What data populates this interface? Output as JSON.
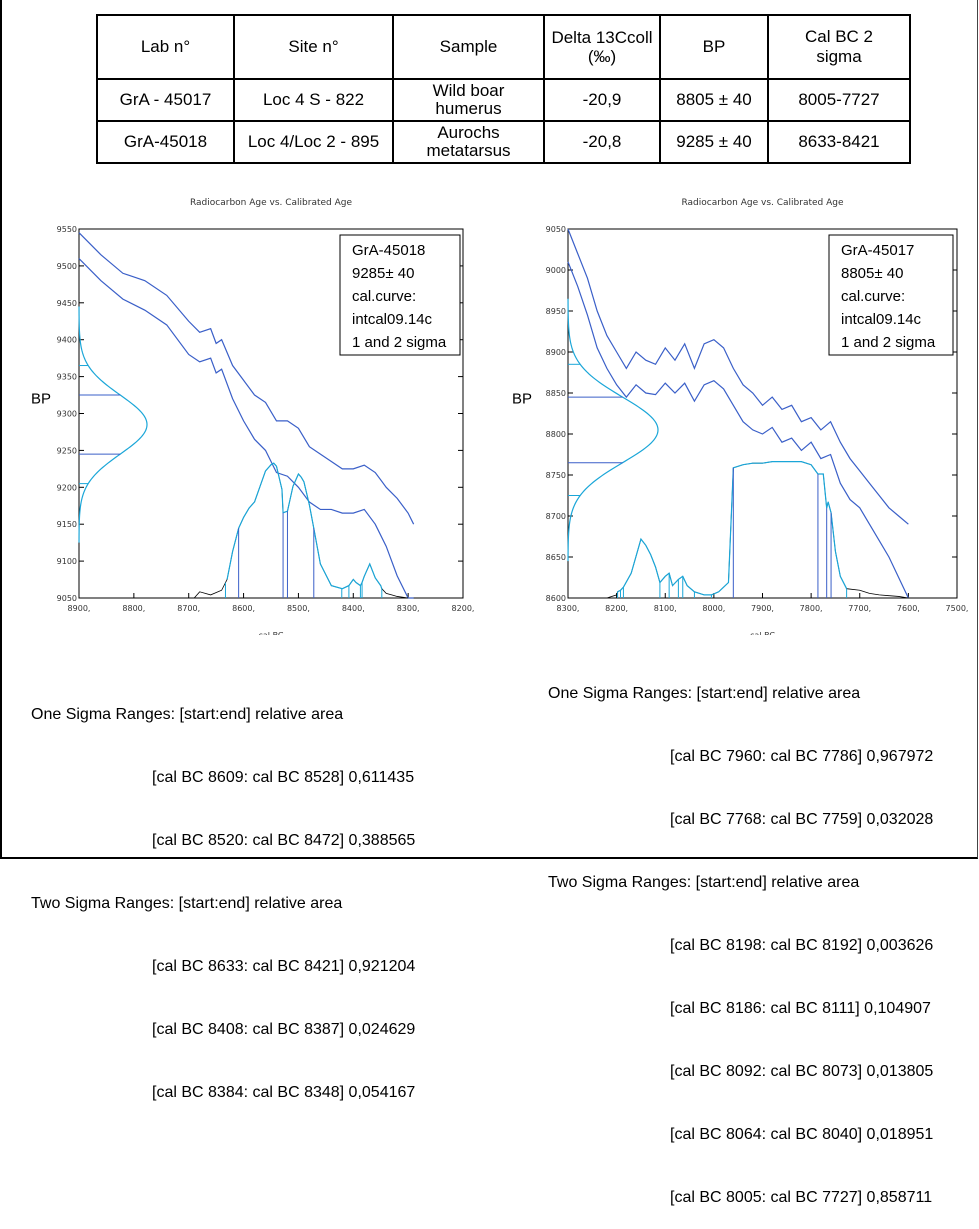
{
  "table": {
    "headers": [
      "Lab n°",
      "Site n°",
      "Sample",
      "Delta 13Ccoll (‰)",
      "BP",
      "Cal BC 2 sigma"
    ],
    "rows": [
      [
        "GrA - 45017",
        "Loc 4 S - 822",
        "Wild boar humerus",
        "-20,9",
        "8805 ± 40",
        "8005-7727"
      ],
      [
        "GrA-45018",
        "Loc 4/Loc 2 - 895",
        "Aurochs metatarsus",
        "-20,8",
        "9285 ± 40",
        "8633-8421"
      ]
    ]
  },
  "chart_data": [
    {
      "type": "line",
      "title": "Radiocarbon Age vs. Calibrated Age",
      "xlabel": "cal BC",
      "ylabel": "BP",
      "xlim": [
        8900,
        8200
      ],
      "ylim": [
        9050,
        9550
      ],
      "x_ticks": [
        "8900,",
        "8800,",
        "8700,",
        "8600,",
        "8500,",
        "8400,",
        "8300,",
        "8200,"
      ],
      "y_ticks": [
        "9550",
        "9500",
        "9450",
        "9400",
        "9350",
        "9300",
        "9250",
        "9200",
        "9150",
        "9100",
        "9050"
      ],
      "legend": [
        "GrA-45018",
        "9285± 40",
        "cal.curve:",
        "intcal09.14c",
        "1 and 2 sigma"
      ],
      "legend_position": "top-right",
      "grid": false,
      "curve_x": [
        8900,
        8860,
        8820,
        8780,
        8740,
        8700,
        8680,
        8660,
        8650,
        8640,
        8620,
        8600,
        8580,
        8560,
        8540,
        8520,
        8500,
        8480,
        8460,
        8440,
        8420,
        8400,
        8380,
        8360,
        8340,
        8320,
        8300,
        8290
      ],
      "curve_upper": [
        9545,
        9515,
        9490,
        9480,
        9460,
        9425,
        9410,
        9415,
        9395,
        9400,
        9365,
        9345,
        9325,
        9315,
        9290,
        9290,
        9280,
        9255,
        9245,
        9235,
        9225,
        9225,
        9230,
        9220,
        9200,
        9185,
        9165,
        9150
      ],
      "curve_lower": [
        9510,
        9480,
        9455,
        9440,
        9420,
        9380,
        9370,
        9375,
        9355,
        9360,
        9320,
        9290,
        9265,
        9250,
        9220,
        9215,
        9200,
        9180,
        9170,
        9170,
        9165,
        9165,
        9170,
        9150,
        9120,
        9080,
        9050,
        9050
      ],
      "measurement_bp": 9285,
      "measurement_err": 40,
      "prob_x": [
        8690,
        8680,
        8660,
        8640,
        8630,
        8620,
        8609,
        8600,
        8590,
        8580,
        8570,
        8560,
        8550,
        8545,
        8540,
        8530,
        8528,
        8520,
        8510,
        8500,
        8495,
        8490,
        8480,
        8472,
        8460,
        8440,
        8420,
        8408,
        8400,
        8395,
        8387,
        8384,
        8380,
        8370,
        8360,
        8350,
        8348,
        8340,
        8330,
        8320,
        8300
      ],
      "prob_y": [
        0,
        0.04,
        0.02,
        0.05,
        0.12,
        0.3,
        0.45,
        0.52,
        0.58,
        0.62,
        0.72,
        0.82,
        0.86,
        0.87,
        0.85,
        0.7,
        0.55,
        0.56,
        0.72,
        0.8,
        0.78,
        0.75,
        0.6,
        0.45,
        0.22,
        0.08,
        0.06,
        0.08,
        0.12,
        0.1,
        0.08,
        0.1,
        0.14,
        0.22,
        0.13,
        0.08,
        0.06,
        0.03,
        0.02,
        0.01,
        0
      ],
      "sigma1_x": [
        8609,
        8528,
        8520,
        8472
      ],
      "sigma2_x": [
        8633,
        8421,
        8408,
        8387,
        8384,
        8348
      ]
    },
    {
      "type": "line",
      "title": "Radiocarbon Age vs. Calibrated Age",
      "xlabel": "cal BC",
      "ylabel": "BP",
      "xlim": [
        8300,
        7500
      ],
      "ylim": [
        8600,
        9050
      ],
      "x_ticks": [
        "8300,",
        "8200,",
        "8100,",
        "8000,",
        "7900,",
        "7800,",
        "7700,",
        "7600,",
        "7500,"
      ],
      "y_ticks": [
        "9050",
        "9000",
        "8950",
        "8900",
        "8850",
        "8800",
        "8750",
        "8700",
        "8650",
        "8600"
      ],
      "legend": [
        "GrA-45017",
        "8805± 40",
        "cal.curve:",
        "intcal09.14c",
        "1 and 2 sigma"
      ],
      "legend_position": "top-right",
      "grid": false,
      "curve_x": [
        8300,
        8280,
        8260,
        8240,
        8220,
        8200,
        8180,
        8160,
        8140,
        8120,
        8100,
        8080,
        8060,
        8040,
        8020,
        8000,
        7980,
        7960,
        7940,
        7920,
        7900,
        7880,
        7860,
        7840,
        7820,
        7800,
        7780,
        7760,
        7740,
        7720,
        7700,
        7680,
        7660,
        7640,
        7620,
        7600
      ],
      "curve_upper": [
        9050,
        9020,
        8990,
        8950,
        8920,
        8900,
        8880,
        8900,
        8890,
        8885,
        8905,
        8890,
        8910,
        8880,
        8910,
        8915,
        8905,
        8880,
        8860,
        8850,
        8835,
        8845,
        8830,
        8835,
        8815,
        8820,
        8805,
        8815,
        8790,
        8770,
        8755,
        8740,
        8725,
        8710,
        8700,
        8690
      ],
      "curve_lower": [
        9010,
        8980,
        8945,
        8905,
        8880,
        8860,
        8845,
        8860,
        8850,
        8848,
        8862,
        8850,
        8862,
        8840,
        8860,
        8865,
        8855,
        8835,
        8815,
        8805,
        8800,
        8808,
        8790,
        8795,
        8780,
        8790,
        8770,
        8775,
        8740,
        8720,
        8710,
        8690,
        8670,
        8650,
        8625,
        8600
      ],
      "measurement_bp": 8805,
      "measurement_err": 40,
      "prob_x": [
        8220,
        8200,
        8198,
        8192,
        8186,
        8170,
        8150,
        8140,
        8130,
        8120,
        8111,
        8100,
        8092,
        8085,
        8073,
        8064,
        8055,
        8040,
        8020,
        8005,
        7990,
        7970,
        7960,
        7940,
        7920,
        7900,
        7880,
        7860,
        7840,
        7820,
        7800,
        7786,
        7775,
        7768,
        7765,
        7759,
        7750,
        7740,
        7727,
        7700,
        7680,
        7660,
        7640,
        7620,
        7600
      ],
      "prob_y": [
        0,
        0.02,
        0.04,
        0.05,
        0.07,
        0.16,
        0.38,
        0.34,
        0.28,
        0.2,
        0.1,
        0.14,
        0.16,
        0.08,
        0.12,
        0.14,
        0.08,
        0.04,
        0.02,
        0.02,
        0.04,
        0.1,
        0.84,
        0.86,
        0.87,
        0.87,
        0.88,
        0.88,
        0.88,
        0.88,
        0.86,
        0.8,
        0.8,
        0.58,
        0.62,
        0.55,
        0.3,
        0.14,
        0.06,
        0.05,
        0.03,
        0.02,
        0.015,
        0.01,
        0
      ],
      "sigma1_x": [
        7960,
        7786,
        7768,
        7759
      ],
      "sigma2_x": [
        8198,
        8192,
        8186,
        8111,
        8092,
        8073,
        8064,
        8040,
        8005,
        7727
      ]
    }
  ],
  "ranges_left": [
    "One Sigma Ranges: [start:end] relative area",
    "[cal BC 8609: cal BC 8528] 0,611435",
    "[cal BC 8520: cal BC 8472] 0,388565",
    "Two Sigma Ranges: [start:end] relative area",
    "[cal BC 8633: cal BC 8421] 0,921204",
    "[cal BC 8408: cal BC 8387] 0,024629",
    "[cal BC 8384: cal BC 8348] 0,054167"
  ],
  "ranges_right": [
    "One Sigma Ranges: [start:end] relative area",
    "[cal BC 7960: cal BC 7786] 0,967972",
    "[cal BC 7768: cal BC 7759] 0,032028",
    "Two Sigma Ranges: [start:end] relative area",
    "[cal BC 8198: cal BC 8192] 0,003626",
    "[cal BC 8186: cal BC 8111] 0,104907",
    "[cal BC 8092: cal BC 8073] 0,013805",
    "[cal BC 8064: cal BC 8040] 0,018951",
    "[cal BC 8005: cal BC 7727] 0,858711"
  ],
  "colors": {
    "curve": "#3a5fc8",
    "prob": "#1aa6d8",
    "prob_outside": "#000000",
    "axis": "#000000"
  }
}
